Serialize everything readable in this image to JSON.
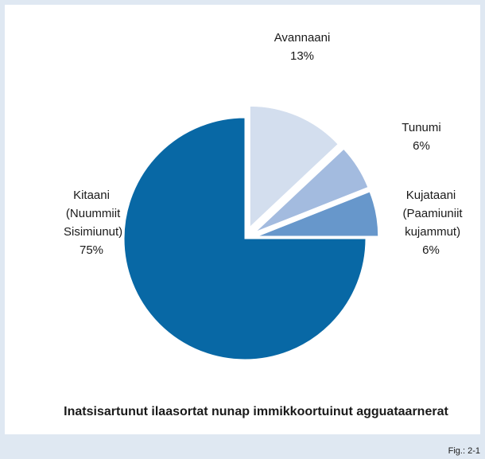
{
  "chart_data": {
    "type": "pie",
    "title": "Inatsisartunut ilaasortat nunap immikkoortuinut agguataarnerat",
    "categories": [
      "Avannaani",
      "Tunumi",
      "Kujataani (Paamiuniit kujammut)",
      "Kitaani (Nuummiit Sisimiunut)"
    ],
    "values": [
      13,
      6,
      6,
      75
    ],
    "value_labels": [
      "13%",
      "6%",
      "6%",
      "75%"
    ],
    "colors": [
      "#d3deee",
      "#a3bbdf",
      "#6797cb",
      "#0868a5"
    ],
    "footnote": "Fig.: 2-1"
  }
}
